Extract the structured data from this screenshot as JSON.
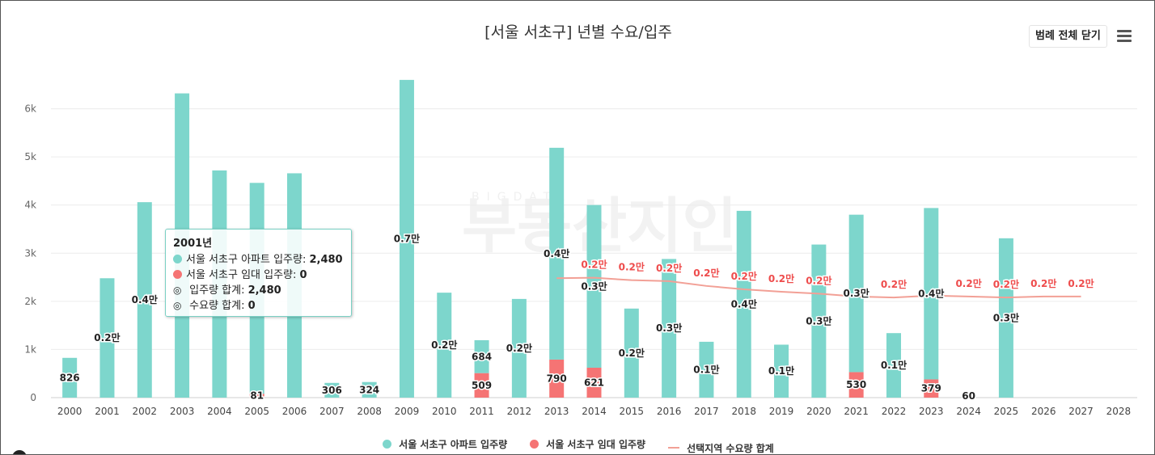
{
  "title": "[서울 서초구] 년별 수요/입주",
  "toolbar": {
    "legend_toggle_label": "범례 전체 닫기",
    "menu_icon": "hamburger-menu-icon"
  },
  "watermark": {
    "main": "부동산지인",
    "sub": "BIGDATA"
  },
  "legend": [
    {
      "label": "서울 서초구 아파트 입주량",
      "symbol": "dot",
      "color": "#7dd6cc"
    },
    {
      "label": "서울 서초구 임대 입주량",
      "symbol": "dot",
      "color": "#f57474"
    },
    {
      "label": "선택지역 수요량 합계",
      "symbol": "line",
      "color": "#f2a096"
    }
  ],
  "chart_data": {
    "type": "bar",
    "stacked": true,
    "title": "[서울 서초구] 년별 수요/입주",
    "categories": [
      "2000",
      "2001",
      "2002",
      "2003",
      "2004",
      "2005",
      "2006",
      "2007",
      "2008",
      "2009",
      "2010",
      "2011",
      "2012",
      "2013",
      "2014",
      "2015",
      "2016",
      "2017",
      "2018",
      "2019",
      "2020",
      "2021",
      "2022",
      "2023",
      "2024",
      "2025",
      "2026",
      "2027",
      "2028"
    ],
    "y_ticks": [
      "0",
      "1k",
      "2k",
      "3k",
      "4k",
      "5k",
      "6k"
    ],
    "ylim": [
      0,
      6900
    ],
    "grid": true,
    "legend_position": "bottom",
    "series": [
      {
        "name": "서울 서초구 아파트 입주량",
        "type": "bar",
        "color": "#7dd6cc",
        "values": [
          826,
          2480,
          4060,
          6320,
          4720,
          4380,
          4660,
          306,
          324,
          6600,
          2180,
          684,
          2050,
          4400,
          3380,
          1850,
          2880,
          1160,
          3880,
          1100,
          3180,
          3270,
          1340,
          3560,
          60,
          3310,
          0,
          0,
          0
        ],
        "labels": [
          "826",
          "0.2만",
          "0.4만",
          "",
          "",
          "",
          "",
          "306",
          "324",
          "0.7만",
          "0.2만",
          "684",
          "0.2만",
          "0.4만",
          "0.3만",
          "0.2만",
          "0.3만",
          "0.1만",
          "0.4만",
          "0.1만",
          "0.3만",
          "0.3만",
          "0.1만",
          "0.4만",
          "60",
          "0.3만",
          "",
          "",
          ""
        ]
      },
      {
        "name": "서울 서초구 임대 입주량",
        "type": "bar",
        "color": "#f57474",
        "values": [
          0,
          0,
          0,
          0,
          0,
          81,
          0,
          0,
          0,
          0,
          0,
          509,
          0,
          790,
          621,
          0,
          0,
          0,
          0,
          0,
          0,
          530,
          0,
          379,
          0,
          0,
          0,
          0,
          0
        ],
        "labels": [
          "",
          "",
          "",
          "",
          "",
          "81",
          "",
          "",
          "",
          "",
          "",
          "509",
          "",
          "790",
          "621",
          "",
          "",
          "",
          "",
          "",
          "",
          "530",
          "",
          "379",
          "",
          "",
          "",
          "",
          ""
        ]
      },
      {
        "name": "선택지역 수요량 합계",
        "type": "line",
        "color": "#f2a096",
        "values": [
          null,
          null,
          null,
          null,
          null,
          null,
          null,
          null,
          null,
          null,
          null,
          null,
          null,
          2480,
          2490,
          2440,
          2420,
          2320,
          2250,
          2200,
          2160,
          2100,
          2080,
          2120,
          2100,
          2080,
          2100,
          2100,
          null
        ],
        "labels": [
          "",
          "",
          "",
          "",
          "",
          "",
          "",
          "",
          "",
          "",
          "",
          "",
          "",
          "",
          "0.2만",
          "0.2만",
          "0.2만",
          "0.2만",
          "0.2만",
          "0.2만",
          "0.2만",
          "",
          "0.2만",
          "",
          "0.2만",
          "0.2만",
          "0.2만",
          "0.2만",
          ""
        ]
      }
    ]
  },
  "tooltip": {
    "title": "2001년",
    "rows": [
      {
        "symbol": "dot",
        "color": "#7dd6cc",
        "label": "서울 서초구 아파트 입주량: ",
        "value": "2,480"
      },
      {
        "symbol": "dot",
        "color": "#f57474",
        "label": "서울 서초구 임대 입주량: ",
        "value": "0"
      },
      {
        "symbol": "◎",
        "label": " 입주량 합계: ",
        "value": "2,480"
      },
      {
        "symbol": "◎",
        "label": " 수요량 합계: ",
        "value": "0"
      }
    ]
  }
}
